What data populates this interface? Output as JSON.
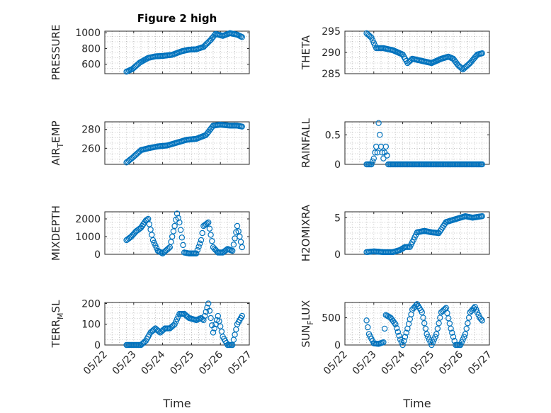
{
  "chart_data": [
    {
      "type": "scatter",
      "title": "Figure 2 high",
      "ylabel": "PRESSURE",
      "ylabel_sub": "",
      "ylim": [
        480,
        1020
      ],
      "yticks": [
        600,
        800,
        1000
      ],
      "x": [
        "05/22 18:00",
        "05/22 23:00",
        "05/23 05:00",
        "05/23 12:00",
        "05/23 18:00",
        "05/24 00:00",
        "05/24 08:00",
        "05/24 16:00",
        "05/24 22:00",
        "05/25 04:00",
        "05/25 10:00",
        "05/25 16:00",
        "05/25 20:00",
        "05/26 02:00",
        "05/26 08:00",
        "05/26 14:00",
        "05/26 18:00"
      ],
      "y": [
        505,
        540,
        620,
        680,
        700,
        705,
        720,
        765,
        785,
        790,
        820,
        910,
        985,
        960,
        995,
        975,
        945
      ]
    },
    {
      "type": "scatter",
      "title": "",
      "ylabel": "THETA",
      "ylabel_sub": "",
      "ylim": [
        285,
        295
      ],
      "yticks": [
        285,
        290,
        295
      ],
      "x": [
        "05/22 18:00",
        "05/22 22:00",
        "05/23 02:00",
        "05/23 08:00",
        "05/23 16:00",
        "05/24 00:00",
        "05/24 04:00",
        "05/24 08:00",
        "05/24 16:00",
        "05/25 00:00",
        "05/25 08:00",
        "05/25 14:00",
        "05/25 18:00",
        "05/25 22:00",
        "05/26 02:00",
        "05/26 08:00",
        "05/26 14:00",
        "05/26 18:00"
      ],
      "y": [
        294.5,
        293.5,
        291.0,
        291.0,
        290.5,
        289.5,
        287.5,
        288.5,
        288.0,
        287.5,
        288.5,
        289.0,
        288.5,
        287.0,
        286.0,
        287.5,
        289.5,
        289.8
      ]
    },
    {
      "type": "scatter",
      "title": "",
      "ylabel": "AIR",
      "ylabel_sub": "T",
      "ylabel_suffix": "EMP",
      "ylim": [
        243,
        288
      ],
      "yticks": [
        260,
        280
      ],
      "x": [
        "05/22 18:00",
        "05/22 23:00",
        "05/23 06:00",
        "05/23 12:00",
        "05/23 20:00",
        "05/24 04:00",
        "05/24 12:00",
        "05/24 20:00",
        "05/25 04:00",
        "05/25 12:00",
        "05/25 18:00",
        "05/26 00:00",
        "05/26 08:00",
        "05/26 14:00",
        "05/26 18:00"
      ],
      "y": [
        245,
        250,
        258,
        260,
        262,
        263,
        266,
        269,
        270,
        274,
        284,
        285,
        284,
        284,
        283
      ]
    },
    {
      "type": "scatter",
      "title": "",
      "ylabel": "RAINFALL",
      "ylabel_sub": "",
      "ylim": [
        0,
        0.72
      ],
      "yticks": [
        0,
        0.5
      ],
      "x": [
        "05/22 18:00",
        "05/22 22:00",
        "05/23 00:00",
        "05/23 01:00",
        "05/23 02:00",
        "05/23 03:00",
        "05/23 04:00",
        "05/23 05:00",
        "05/23 06:00",
        "05/23 08:00",
        "05/23 10:00",
        "05/23 12:00",
        "05/24 00:00",
        "05/25 00:00",
        "05/26 00:00",
        "05/26 18:00"
      ],
      "y": [
        0,
        0,
        0.1,
        0.2,
        0.3,
        0.2,
        0.7,
        0.5,
        0.3,
        0.1,
        0.3,
        0,
        0,
        0,
        0,
        0
      ]
    },
    {
      "type": "scatter",
      "title": "",
      "ylabel": "MIXDEPTH",
      "ylabel_sub": "",
      "ylim": [
        0,
        2400
      ],
      "yticks": [
        0,
        1000,
        2000
      ],
      "x": [
        "05/22 18:00",
        "05/22 22:00",
        "05/23 02:00",
        "05/23 06:00",
        "05/23 10:00",
        "05/23 12:00",
        "05/23 16:00",
        "05/23 20:00",
        "05/24 00:00",
        "05/24 06:00",
        "05/24 10:00",
        "05/24 12:00",
        "05/24 14:00",
        "05/24 18:00",
        "05/24 22:00",
        "05/25 04:00",
        "05/25 08:00",
        "05/25 10:00",
        "05/25 14:00",
        "05/25 18:00",
        "05/25 22:00",
        "05/26 02:00",
        "05/26 06:00",
        "05/26 10:00",
        "05/26 14:00",
        "05/26 18:00"
      ],
      "y": [
        800,
        1000,
        1300,
        1500,
        1900,
        2000,
        800,
        200,
        50,
        400,
        1600,
        2300,
        1800,
        100,
        50,
        50,
        800,
        1600,
        1800,
        400,
        100,
        100,
        300,
        200,
        1600,
        400
      ]
    },
    {
      "type": "scatter",
      "title": "",
      "ylabel": "H2OMIXRA",
      "ylabel_sub": "",
      "ylim": [
        0,
        5.8
      ],
      "yticks": [
        0,
        5
      ],
      "x": [
        "05/22 18:00",
        "05/23 00:00",
        "05/23 08:00",
        "05/23 16:00",
        "05/23 22:00",
        "05/24 02:00",
        "05/24 06:00",
        "05/24 12:00",
        "05/24 18:00",
        "05/25 00:00",
        "05/25 06:00",
        "05/25 12:00",
        "05/25 20:00",
        "05/26 04:00",
        "05/26 10:00",
        "05/26 18:00"
      ],
      "y": [
        0.3,
        0.4,
        0.3,
        0.3,
        0.6,
        1.0,
        1.0,
        3.0,
        3.2,
        3.0,
        2.9,
        4.4,
        4.8,
        5.2,
        5.0,
        5.2
      ]
    },
    {
      "type": "scatter",
      "title": "",
      "ylabel": "TERR",
      "ylabel_sub": "M",
      "ylabel_suffix": "SL",
      "ylim": [
        0,
        205
      ],
      "yticks": [
        0,
        100,
        200
      ],
      "show_xticks": true,
      "xlabel": "Time",
      "x": [
        "05/22 18:00",
        "05/23 00:00",
        "05/23 06:00",
        "05/23 10:00",
        "05/23 14:00",
        "05/23 18:00",
        "05/23 22:00",
        "05/24 02:00",
        "05/24 06:00",
        "05/24 10:00",
        "05/24 14:00",
        "05/24 18:00",
        "05/24 22:00",
        "05/25 04:00",
        "05/25 08:00",
        "05/25 10:00",
        "05/25 14:00",
        "05/25 18:00",
        "05/25 22:00",
        "05/26 02:00",
        "05/26 06:00",
        "05/26 10:00",
        "05/26 14:00",
        "05/26 18:00"
      ],
      "y": [
        0,
        0,
        0,
        20,
        60,
        80,
        60,
        80,
        80,
        100,
        150,
        150,
        130,
        120,
        130,
        120,
        200,
        60,
        140,
        40,
        0,
        0,
        100,
        140
      ]
    },
    {
      "type": "scatter",
      "title": "",
      "ylabel": "SUN",
      "ylabel_sub": "F",
      "ylabel_suffix": "LUX",
      "ylim": [
        0,
        780
      ],
      "yticks": [
        0,
        500
      ],
      "show_xticks": true,
      "xlabel": "Time",
      "x": [
        "05/22 18:00",
        "05/22 20:00",
        "05/23 00:00",
        "05/23 04:00",
        "05/23 08:00",
        "05/23 10:00",
        "05/23 14:00",
        "05/23 18:00",
        "05/23 22:00",
        "05/24 00:00",
        "05/24 04:00",
        "05/24 08:00",
        "05/24 12:00",
        "05/24 16:00",
        "05/24 20:00",
        "05/25 00:00",
        "05/25 04:00",
        "05/25 08:00",
        "05/25 12:00",
        "05/25 16:00",
        "05/25 20:00",
        "05/26 00:00",
        "05/26 04:00",
        "05/26 08:00",
        "05/26 12:00",
        "05/26 16:00",
        "05/26 18:00"
      ],
      "y": [
        450,
        200,
        30,
        20,
        50,
        550,
        500,
        380,
        100,
        0,
        300,
        650,
        750,
        600,
        200,
        0,
        200,
        600,
        680,
        300,
        0,
        0,
        200,
        600,
        700,
        500,
        450
      ]
    }
  ],
  "x_range": [
    "05/22 00:00",
    "05/27 00:00"
  ],
  "x_tick_labels": [
    "05/22",
    "05/23",
    "05/24",
    "05/25",
    "05/26",
    "05/27"
  ],
  "accent_color": "#0072BD"
}
